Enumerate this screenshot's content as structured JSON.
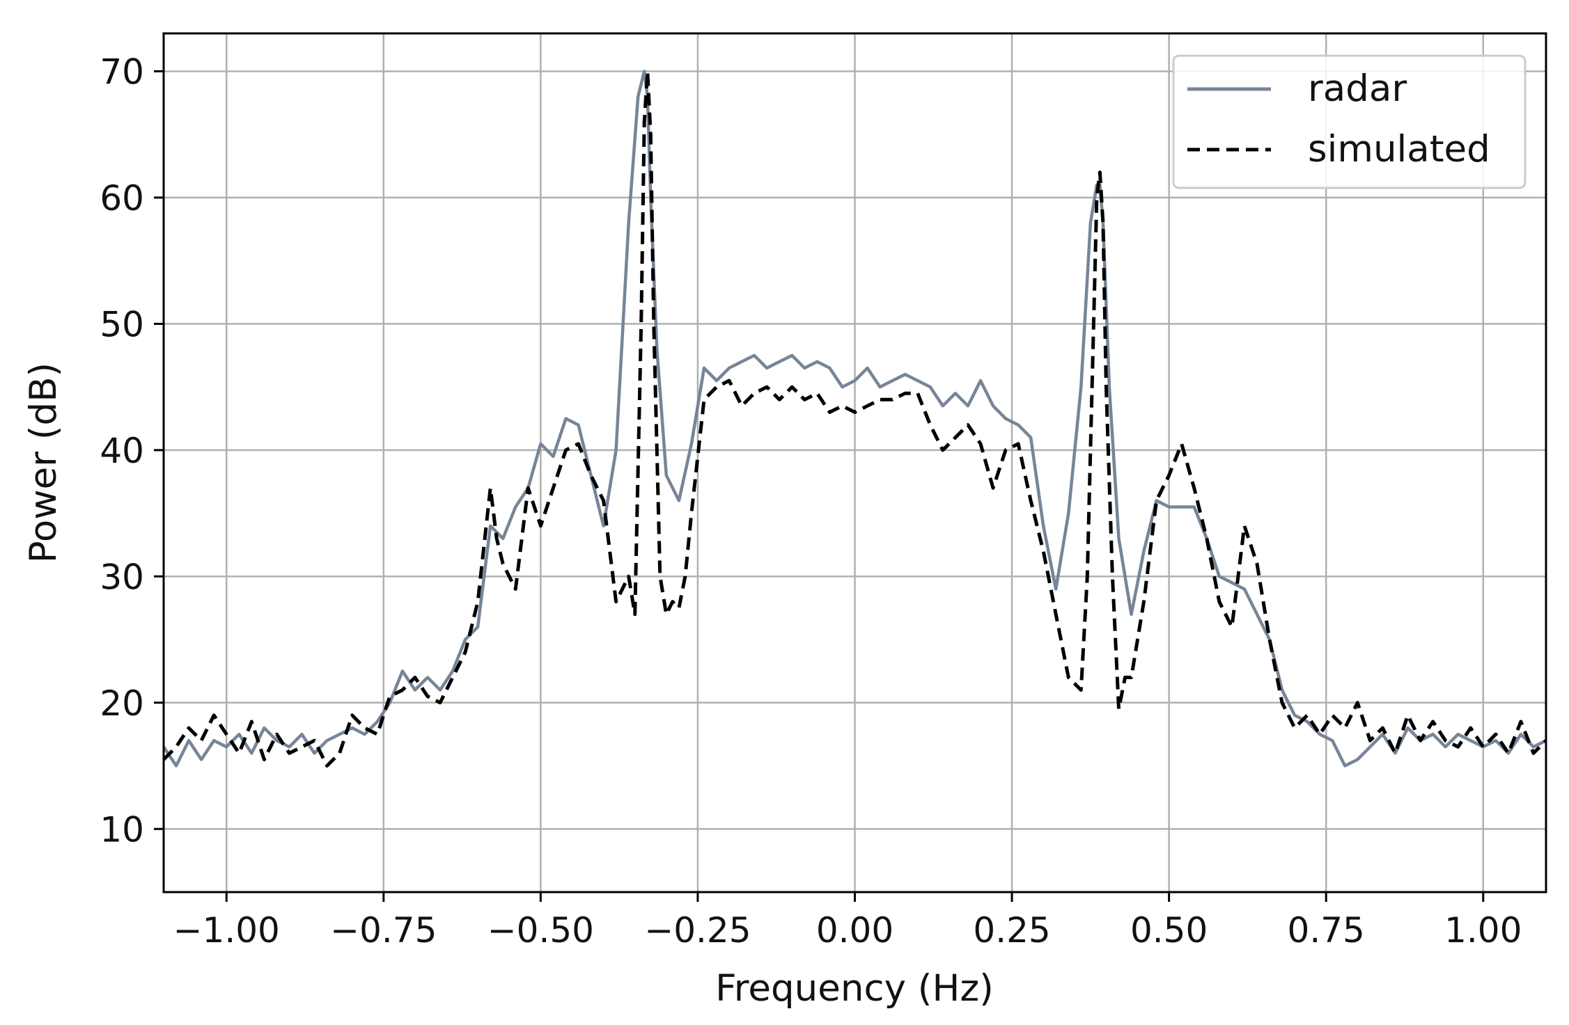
{
  "chart_data": {
    "type": "line",
    "title": "",
    "xlabel": "Frequency (Hz)",
    "ylabel": "Power (dB)",
    "xlim": [
      -1.1,
      1.1
    ],
    "ylim": [
      5,
      73
    ],
    "x_ticks": [
      -1.0,
      -0.75,
      -0.5,
      -0.25,
      0.0,
      0.25,
      0.5,
      0.75,
      1.0
    ],
    "x_tick_labels": [
      "−1.00",
      "−0.75",
      "−0.50",
      "−0.25",
      "0.00",
      "0.25",
      "0.50",
      "0.75",
      "1.00"
    ],
    "y_ticks": [
      10,
      20,
      30,
      40,
      50,
      60,
      70
    ],
    "y_tick_labels": [
      "10",
      "20",
      "30",
      "40",
      "50",
      "60",
      "70"
    ],
    "grid": true,
    "legend_position": "top-right",
    "series": [
      {
        "name": "radar",
        "color": "#768597",
        "style": "solid",
        "x": [
          -1.1,
          -1.08,
          -1.06,
          -1.04,
          -1.02,
          -1.0,
          -0.98,
          -0.96,
          -0.94,
          -0.92,
          -0.9,
          -0.88,
          -0.86,
          -0.84,
          -0.82,
          -0.8,
          -0.78,
          -0.76,
          -0.74,
          -0.72,
          -0.7,
          -0.68,
          -0.66,
          -0.64,
          -0.62,
          -0.6,
          -0.58,
          -0.56,
          -0.54,
          -0.52,
          -0.5,
          -0.48,
          -0.46,
          -0.44,
          -0.42,
          -0.4,
          -0.38,
          -0.36,
          -0.345,
          -0.335,
          -0.33,
          -0.325,
          -0.315,
          -0.3,
          -0.28,
          -0.26,
          -0.24,
          -0.22,
          -0.2,
          -0.18,
          -0.16,
          -0.14,
          -0.12,
          -0.1,
          -0.08,
          -0.06,
          -0.04,
          -0.02,
          0.0,
          0.02,
          0.04,
          0.06,
          0.08,
          0.1,
          0.12,
          0.14,
          0.16,
          0.18,
          0.2,
          0.22,
          0.24,
          0.26,
          0.28,
          0.3,
          0.32,
          0.34,
          0.36,
          0.375,
          0.385,
          0.39,
          0.395,
          0.405,
          0.42,
          0.44,
          0.46,
          0.48,
          0.5,
          0.52,
          0.54,
          0.56,
          0.58,
          0.6,
          0.62,
          0.64,
          0.66,
          0.68,
          0.7,
          0.72,
          0.74,
          0.76,
          0.78,
          0.8,
          0.82,
          0.84,
          0.86,
          0.88,
          0.9,
          0.92,
          0.94,
          0.96,
          0.98,
          1.0,
          1.02,
          1.04,
          1.06,
          1.08,
          1.1
        ],
        "y": [
          16.5,
          15.0,
          17.0,
          15.5,
          17.0,
          16.5,
          17.5,
          16.0,
          18.0,
          17.0,
          16.5,
          17.5,
          16.0,
          17.0,
          17.5,
          18.0,
          17.5,
          18.5,
          20.0,
          22.5,
          21.0,
          22.0,
          21.0,
          22.5,
          25.0,
          26.0,
          34.0,
          33.0,
          35.5,
          37.0,
          40.5,
          39.5,
          42.5,
          42.0,
          38.0,
          34.0,
          40.0,
          58.0,
          68.0,
          70.0,
          68.0,
          60.0,
          48.0,
          38.0,
          36.0,
          40.5,
          46.5,
          45.5,
          46.5,
          47.0,
          47.5,
          46.5,
          47.0,
          47.5,
          46.5,
          47.0,
          46.5,
          45.0,
          45.5,
          46.5,
          45.0,
          45.5,
          46.0,
          45.5,
          45.0,
          43.5,
          44.5,
          43.5,
          45.5,
          43.5,
          42.5,
          42.0,
          41.0,
          34.0,
          29.0,
          35.0,
          45.0,
          58.0,
          61.0,
          61.0,
          58.0,
          45.0,
          33.0,
          27.0,
          32.0,
          36.0,
          35.5,
          35.5,
          35.5,
          33.0,
          30.0,
          29.5,
          29.0,
          27.0,
          25.0,
          21.0,
          19.0,
          18.5,
          17.5,
          17.0,
          15.0,
          15.5,
          16.5,
          17.5,
          16.0,
          18.0,
          17.0,
          17.5,
          16.5,
          17.5,
          17.0,
          16.5,
          17.0,
          16.0,
          17.5,
          16.5,
          17.0
        ]
      },
      {
        "name": "simulated",
        "color": "#000000",
        "style": "dashed",
        "x": [
          -1.1,
          -1.08,
          -1.06,
          -1.04,
          -1.02,
          -1.0,
          -0.98,
          -0.96,
          -0.94,
          -0.92,
          -0.9,
          -0.88,
          -0.86,
          -0.84,
          -0.82,
          -0.8,
          -0.78,
          -0.76,
          -0.74,
          -0.72,
          -0.7,
          -0.68,
          -0.66,
          -0.64,
          -0.62,
          -0.6,
          -0.58,
          -0.57,
          -0.56,
          -0.54,
          -0.52,
          -0.5,
          -0.48,
          -0.46,
          -0.44,
          -0.42,
          -0.4,
          -0.38,
          -0.36,
          -0.35,
          -0.34,
          -0.335,
          -0.33,
          -0.325,
          -0.32,
          -0.31,
          -0.3,
          -0.29,
          -0.28,
          -0.27,
          -0.26,
          -0.24,
          -0.22,
          -0.2,
          -0.18,
          -0.16,
          -0.14,
          -0.12,
          -0.1,
          -0.08,
          -0.06,
          -0.04,
          -0.02,
          0.0,
          0.02,
          0.04,
          0.06,
          0.08,
          0.1,
          0.12,
          0.14,
          0.16,
          0.18,
          0.2,
          0.22,
          0.24,
          0.26,
          0.28,
          0.3,
          0.32,
          0.34,
          0.36,
          0.37,
          0.38,
          0.385,
          0.39,
          0.395,
          0.4,
          0.41,
          0.42,
          0.43,
          0.44,
          0.46,
          0.48,
          0.5,
          0.52,
          0.54,
          0.56,
          0.58,
          0.6,
          0.62,
          0.64,
          0.66,
          0.68,
          0.7,
          0.72,
          0.74,
          0.76,
          0.78,
          0.8,
          0.82,
          0.84,
          0.86,
          0.88,
          0.9,
          0.92,
          0.94,
          0.96,
          0.98,
          1.0,
          1.02,
          1.04,
          1.06,
          1.08,
          1.1
        ],
        "y": [
          15.5,
          16.5,
          18.0,
          17.0,
          19.0,
          17.5,
          16.0,
          18.5,
          15.5,
          17.5,
          16.0,
          16.5,
          17.0,
          15.0,
          16.0,
          19.0,
          18.0,
          17.5,
          20.5,
          21.0,
          22.0,
          20.5,
          20.0,
          22.0,
          24.0,
          28.0,
          37.0,
          33.0,
          31.0,
          29.0,
          37.0,
          34.0,
          37.0,
          40.0,
          40.5,
          38.0,
          36.0,
          28.0,
          30.0,
          27.0,
          50.0,
          66.0,
          70.0,
          65.0,
          50.0,
          30.0,
          27.0,
          28.0,
          27.5,
          30.0,
          35.0,
          44.0,
          45.0,
          45.5,
          43.5,
          44.5,
          45.0,
          44.0,
          45.0,
          44.0,
          44.5,
          43.0,
          43.5,
          43.0,
          43.5,
          44.0,
          44.0,
          44.5,
          44.5,
          42.0,
          40.0,
          41.0,
          42.0,
          40.5,
          37.0,
          40.0,
          40.5,
          36.0,
          32.0,
          27.0,
          22.0,
          21.0,
          30.0,
          50.0,
          60.0,
          62.0,
          58.0,
          45.0,
          30.0,
          19.5,
          22.0,
          22.0,
          28.0,
          36.0,
          38.0,
          40.5,
          37.0,
          33.0,
          28.0,
          26.0,
          34.0,
          31.0,
          25.0,
          20.0,
          18.0,
          19.0,
          17.5,
          19.0,
          18.0,
          20.0,
          17.0,
          18.0,
          16.0,
          19.0,
          17.0,
          18.5,
          17.0,
          16.5,
          18.0,
          16.5,
          17.5,
          16.0,
          18.5,
          16.0,
          17.0
        ]
      }
    ]
  }
}
